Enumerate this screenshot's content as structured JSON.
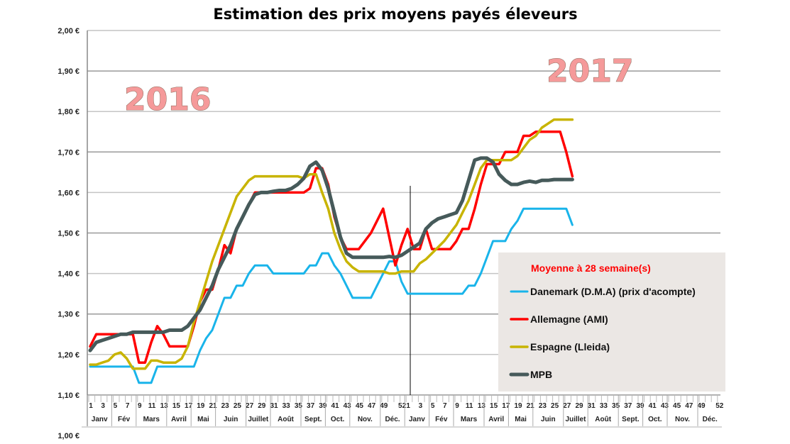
{
  "chart_data": {
    "type": "line",
    "title": "Estimation des prix moyens payés éleveurs",
    "annotations": {
      "year_left": "2016",
      "year_right": "2017",
      "legend_title": "Moyenne à  28 semaine(s)"
    },
    "ylim": [
      1.0,
      2.0
    ],
    "y_ticks": [
      "1,00 €",
      "1,10 €",
      "1,20 €",
      "1,30 €",
      "1,40 €",
      "1,50 €",
      "1,60 €",
      "1,70 €",
      "1,80 €",
      "1,90 €",
      "2,00 €"
    ],
    "y_tick_values": [
      1.0,
      1.1,
      1.2,
      1.3,
      1.4,
      1.5,
      1.6,
      1.7,
      1.8,
      1.9,
      2.0
    ],
    "x_week_labels": [
      "1",
      "3",
      "5",
      "7",
      "9",
      "11",
      "13",
      "15",
      "17",
      "19",
      "21",
      "23",
      "25",
      "27",
      "29",
      "31",
      "33",
      "35",
      "37",
      "39",
      "41",
      "43",
      "45",
      "47",
      "49",
      "52"
    ],
    "x_week_label_values": [
      1,
      3,
      5,
      7,
      9,
      11,
      13,
      15,
      17,
      19,
      21,
      23,
      25,
      27,
      29,
      31,
      33,
      35,
      37,
      39,
      41,
      43,
      45,
      47,
      49,
      52
    ],
    "months": [
      "Janv",
      "Fév",
      "Mars",
      "Avril",
      "Mai",
      "Juin",
      "Juillet",
      "Août",
      "Sept.",
      "Oct.",
      "Nov.",
      "Déc."
    ],
    "years": [
      "2016",
      "2017"
    ],
    "x": "week index over 2016 (weeks 1-52) and 2017 (weeks 1-28)",
    "grid": true,
    "legend": "bottom-right",
    "series": [
      {
        "name": "Danemark (D.M.A) (prix d'acompte)",
        "color": "#19b4ea",
        "values": [
          1.17,
          1.17,
          1.17,
          1.17,
          1.17,
          1.17,
          1.17,
          1.17,
          1.13,
          1.13,
          1.13,
          1.17,
          1.17,
          1.17,
          1.17,
          1.17,
          1.17,
          1.17,
          1.21,
          1.24,
          1.26,
          1.3,
          1.34,
          1.34,
          1.37,
          1.37,
          1.4,
          1.42,
          1.42,
          1.42,
          1.4,
          1.4,
          1.4,
          1.4,
          1.4,
          1.4,
          1.42,
          1.42,
          1.45,
          1.45,
          1.42,
          1.4,
          1.37,
          1.34,
          1.34,
          1.34,
          1.34,
          1.37,
          1.4,
          1.43,
          1.43,
          1.38,
          1.35,
          1.35,
          1.35,
          1.35,
          1.35,
          1.35,
          1.35,
          1.35,
          1.35,
          1.35,
          1.37,
          1.37,
          1.4,
          1.44,
          1.48,
          1.48,
          1.48,
          1.51,
          1.53,
          1.56,
          1.56,
          1.56,
          1.56,
          1.56,
          1.56,
          1.56,
          1.56,
          1.52
        ]
      },
      {
        "name": "Allemagne (AMI)",
        "color": "#ff0000",
        "values": [
          1.22,
          1.25,
          1.25,
          1.25,
          1.25,
          1.25,
          1.25,
          1.25,
          1.18,
          1.18,
          1.23,
          1.27,
          1.25,
          1.22,
          1.22,
          1.22,
          1.22,
          1.27,
          1.33,
          1.36,
          1.36,
          1.41,
          1.47,
          1.45,
          1.51,
          1.54,
          1.57,
          1.6,
          1.6,
          1.6,
          1.6,
          1.6,
          1.6,
          1.6,
          1.6,
          1.6,
          1.61,
          1.66,
          1.66,
          1.62,
          1.54,
          1.49,
          1.46,
          1.46,
          1.46,
          1.48,
          1.5,
          1.53,
          1.56,
          1.49,
          1.42,
          1.47,
          1.51,
          1.46,
          1.46,
          1.51,
          1.46,
          1.46,
          1.46,
          1.46,
          1.48,
          1.51,
          1.51,
          1.56,
          1.62,
          1.67,
          1.67,
          1.67,
          1.7,
          1.7,
          1.7,
          1.74,
          1.74,
          1.75,
          1.75,
          1.75,
          1.75,
          1.75,
          1.7,
          1.64
        ]
      },
      {
        "name": "Espagne (Lleida)",
        "color": "#c8b400",
        "values": [
          1.175,
          1.175,
          1.18,
          1.185,
          1.2,
          1.205,
          1.19,
          1.165,
          1.165,
          1.165,
          1.185,
          1.185,
          1.18,
          1.18,
          1.18,
          1.19,
          1.22,
          1.28,
          1.33,
          1.38,
          1.43,
          1.47,
          1.51,
          1.55,
          1.59,
          1.61,
          1.63,
          1.64,
          1.64,
          1.64,
          1.64,
          1.64,
          1.64,
          1.64,
          1.64,
          1.635,
          1.645,
          1.645,
          1.6,
          1.56,
          1.5,
          1.46,
          1.43,
          1.415,
          1.405,
          1.405,
          1.405,
          1.405,
          1.405,
          1.4,
          1.4,
          1.405,
          1.405,
          1.405,
          1.425,
          1.435,
          1.45,
          1.465,
          1.48,
          1.5,
          1.52,
          1.55,
          1.58,
          1.62,
          1.66,
          1.68,
          1.68,
          1.68,
          1.68,
          1.68,
          1.69,
          1.71,
          1.73,
          1.74,
          1.76,
          1.77,
          1.78,
          1.78,
          1.78,
          1.78
        ]
      },
      {
        "name": "MPB",
        "color": "#465a5a",
        "values": [
          1.21,
          1.23,
          1.235,
          1.24,
          1.245,
          1.25,
          1.25,
          1.255,
          1.255,
          1.255,
          1.255,
          1.255,
          1.255,
          1.26,
          1.26,
          1.26,
          1.27,
          1.29,
          1.31,
          1.34,
          1.37,
          1.41,
          1.44,
          1.47,
          1.51,
          1.54,
          1.57,
          1.595,
          1.6,
          1.6,
          1.603,
          1.605,
          1.605,
          1.61,
          1.62,
          1.635,
          1.665,
          1.675,
          1.655,
          1.61,
          1.55,
          1.49,
          1.45,
          1.44,
          1.44,
          1.44,
          1.44,
          1.44,
          1.44,
          1.442,
          1.44,
          1.445,
          1.455,
          1.465,
          1.475,
          1.51,
          1.525,
          1.535,
          1.54,
          1.545,
          1.55,
          1.58,
          1.63,
          1.68,
          1.685,
          1.685,
          1.675,
          1.645,
          1.63,
          1.62,
          1.62,
          1.625,
          1.628,
          1.625,
          1.63,
          1.63,
          1.632,
          1.632,
          1.632,
          1.632
        ]
      }
    ]
  }
}
